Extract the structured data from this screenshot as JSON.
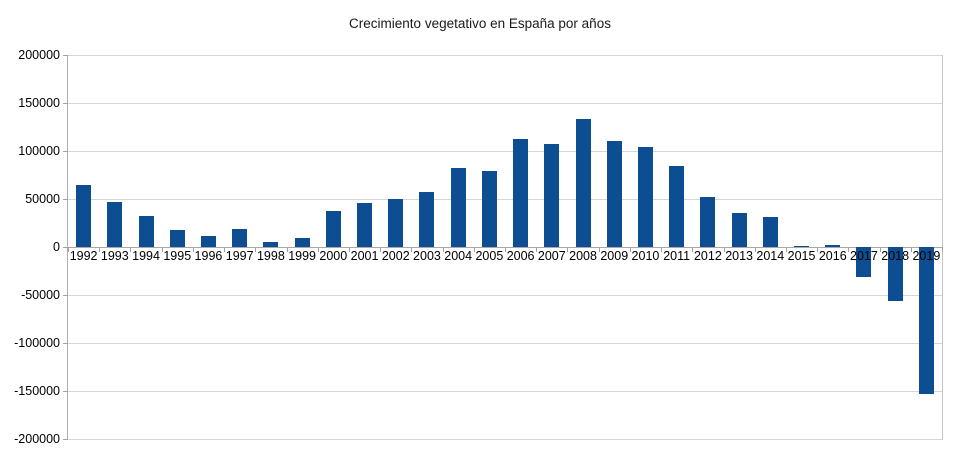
{
  "chart_data": {
    "type": "bar",
    "title": "Crecimiento vegetativo en España por años",
    "xlabel": "",
    "ylabel": "",
    "categories": [
      "1992",
      "1993",
      "1994",
      "1995",
      "1996",
      "1997",
      "1998",
      "1999",
      "2000",
      "2001",
      "2002",
      "2003",
      "2004",
      "2005",
      "2006",
      "2007",
      "2008",
      "2009",
      "2010",
      "2011",
      "2012",
      "2013",
      "2014",
      "2015",
      "2016",
      "2017",
      "2018",
      "2019"
    ],
    "values": [
      65000,
      47000,
      32000,
      18000,
      11000,
      19000,
      5000,
      9000,
      37000,
      46000,
      50000,
      57000,
      82000,
      79000,
      112000,
      107000,
      133000,
      110000,
      104000,
      84000,
      52000,
      35000,
      31000,
      1000,
      2000,
      -31000,
      -56000,
      -153000
    ],
    "ylim": [
      -200000,
      200000
    ],
    "yticks": [
      200000,
      150000,
      100000,
      50000,
      0,
      -50000,
      -100000,
      -150000,
      -200000
    ],
    "grid": true,
    "legend_position": "none",
    "bar_color": "#0d4d92",
    "text_color": "#000000",
    "gridline_color": "#d6d6d6"
  }
}
